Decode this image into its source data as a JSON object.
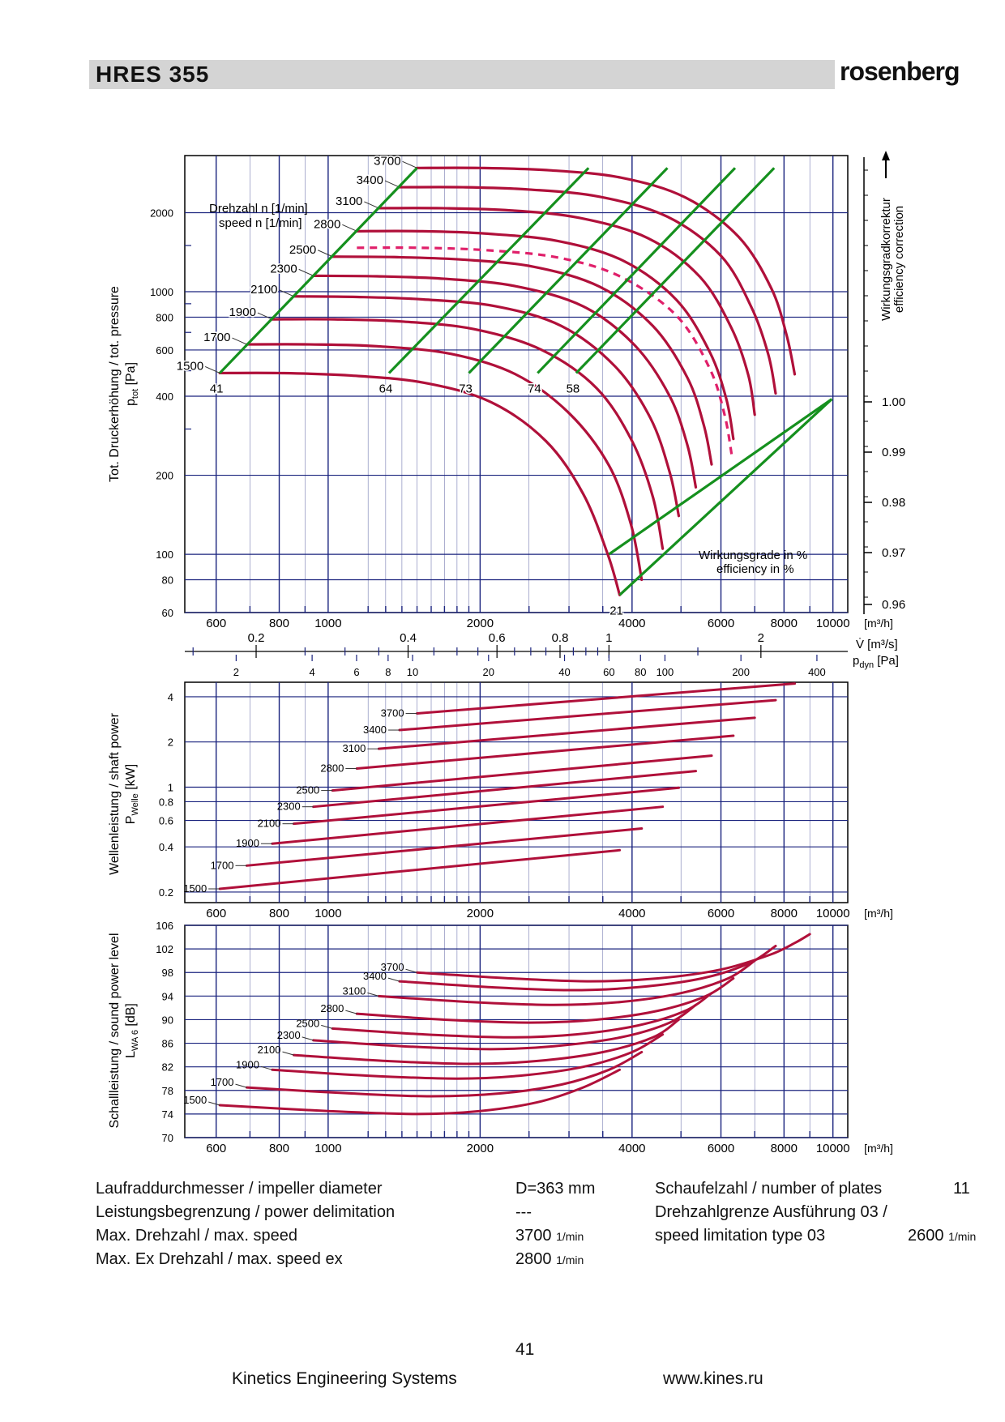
{
  "header": {
    "title": "HRES  355",
    "brand": "rosenberg"
  },
  "colors": {
    "curve": "#b0103a",
    "eff": "#15901e",
    "grid": "#1a237e",
    "header": "#d4d4d4"
  },
  "chart_data": [
    {
      "type": "line",
      "title": "",
      "ylabel": "Tot. Druckerhöhung / tot. pressure",
      "ylabel_sym": "p",
      "ylabel_sub": "tot",
      "ylabel_unit": "[Pa]",
      "xlabel": "[m³/h]",
      "xlabel2": "[m³/s]",
      "xlabel3": "[Pa]",
      "xlabel3_sym": "p",
      "xlabel3_sub": "dyn",
      "xlim": [
        520,
        10700
      ],
      "ylim": [
        60,
        3300
      ],
      "x_log": true,
      "y_log": true,
      "x_ticks": [
        600,
        800,
        1000,
        2000,
        4000,
        6000,
        8000,
        10000
      ],
      "x_tick_labels": [
        "600",
        "800",
        "1000",
        "2000",
        "4000",
        "6000",
        "8000",
        "10000"
      ],
      "y_ticks": [
        60,
        80,
        100,
        200,
        400,
        600,
        800,
        1000,
        2000
      ],
      "x2_ticks": [
        0.2,
        0.4,
        0.6,
        0.8,
        1,
        2
      ],
      "x3_ticks": [
        2,
        4,
        6,
        8,
        10,
        20,
        40,
        60,
        80,
        100,
        200,
        400
      ],
      "speed_label": "Drehzahl n",
      "speed_label_2": "speed n",
      "speed_unit": "[1/min]",
      "eff_label": "Wirkungsgrade in %",
      "eff_label_2": "efficiency in %",
      "corr_label": "Wirkungsgradkorrektur",
      "corr_label_2": "efficiency correction",
      "corr_ticks": [
        "1.00",
        "0.99",
        "0.98",
        "0.97",
        "0.96"
      ],
      "series": [
        {
          "name": "1500",
          "x": [
            610,
            800,
            1100,
            1550,
            2100,
            2700,
            3200,
            3580,
            3780
          ],
          "y": [
            490,
            490,
            480,
            450,
            380,
            270,
            170,
            100,
            70
          ]
        },
        {
          "name": "1700",
          "x": [
            690,
            920,
            1250,
            1750,
            2350,
            3000,
            3600,
            3980,
            4180
          ],
          "y": [
            630,
            630,
            620,
            580,
            485,
            345,
            218,
            130,
            80
          ]
        },
        {
          "name": "1900",
          "x": [
            775,
            1030,
            1400,
            1950,
            2650,
            3400,
            4000,
            4400,
            4600
          ],
          "y": [
            785,
            785,
            770,
            720,
            600,
            430,
            270,
            165,
            105
          ]
        },
        {
          "name": "2100",
          "x": [
            855,
            1140,
            1540,
            2150,
            2900,
            3700,
            4350,
            4750,
            4950
          ],
          "y": [
            960,
            955,
            935,
            880,
            740,
            520,
            330,
            205,
            140
          ]
        },
        {
          "name": "2300",
          "x": [
            935,
            1250,
            1700,
            2350,
            3200,
            4050,
            4750,
            5150,
            5350
          ],
          "y": [
            1150,
            1145,
            1120,
            1050,
            880,
            625,
            400,
            260,
            180
          ]
        },
        {
          "name": "2500",
          "x": [
            1020,
            1350,
            1850,
            2550,
            3450,
            4400,
            5150,
            5550,
            5750
          ],
          "y": [
            1360,
            1355,
            1325,
            1245,
            1045,
            740,
            470,
            310,
            220
          ]
        },
        {
          "name": "2800",
          "x": [
            1140,
            1520,
            2050,
            2850,
            3850,
            4900,
            5700,
            6150,
            6350
          ],
          "y": [
            1700,
            1700,
            1665,
            1560,
            1310,
            930,
            590,
            390,
            275
          ]
        },
        {
          "name": "3100",
          "x": [
            1260,
            1680,
            2300,
            3150,
            4300,
            5450,
            6300,
            6800,
            7000
          ],
          "y": [
            2080,
            2080,
            2040,
            1910,
            1600,
            1140,
            725,
            480,
            340
          ]
        },
        {
          "name": "3400",
          "x": [
            1385,
            1850,
            2500,
            3450,
            4700,
            6000,
            6900,
            7450,
            7700
          ],
          "y": [
            2500,
            2500,
            2450,
            2300,
            1930,
            1370,
            870,
            575,
            410
          ]
        },
        {
          "name": "3700",
          "x": [
            1500,
            2000,
            2750,
            3800,
            5100,
            6500,
            7550,
            8100,
            8400
          ],
          "y": [
            2960,
            2960,
            2900,
            2720,
            2285,
            1620,
            1030,
            680,
            485
          ]
        }
      ],
      "dashed_series": {
        "name": "2800",
        "x": [
          1140,
          1520,
          2050,
          2850,
          3800,
          4900,
          5700,
          6100,
          6300
        ],
        "y": [
          1470,
          1470,
          1440,
          1350,
          1140,
          810,
          510,
          340,
          240
        ]
      },
      "efficiency_lines": [
        {
          "name": "41",
          "x": [
            610,
            1500
          ],
          "y": [
            490,
            2960
          ]
        },
        {
          "name": "64",
          "x": [
            1320,
            3280
          ],
          "y": [
            490,
            2960
          ]
        },
        {
          "name": "73",
          "x": [
            1900,
            4700
          ],
          "y": [
            490,
            2960
          ]
        },
        {
          "name": "74",
          "x": [
            2600,
            6400
          ],
          "y": [
            490,
            2960
          ]
        },
        {
          "name": "58",
          "x": [
            3100,
            7650
          ],
          "y": [
            490,
            2960
          ]
        },
        {
          "name": "21",
          "x": [
            3780,
            9950
          ],
          "y": [
            70,
            390
          ]
        },
        {
          "name": "",
          "x": [
            3600,
            9950
          ],
          "y": [
            100,
            390
          ]
        }
      ]
    },
    {
      "type": "line",
      "ylabel": "Wellenleistung / shaft power",
      "ylabel_sym": "P",
      "ylabel_sub": "Welle",
      "ylabel_unit": "[kW]",
      "xlabel": "[m³/h]",
      "xlim": [
        520,
        10700
      ],
      "ylim": [
        0.17,
        5
      ],
      "x_log": true,
      "y_log": true,
      "x_ticks": [
        600,
        800,
        1000,
        2000,
        4000,
        6000,
        8000,
        10000
      ],
      "x_tick_labels": [
        "600",
        "800",
        "1000",
        "2000",
        "4000",
        "6000",
        "8000",
        "10000"
      ],
      "y_ticks": [
        0.2,
        0.4,
        0.6,
        0.8,
        1,
        2,
        4
      ],
      "series": [
        {
          "name": "1500",
          "x": [
            610,
            3780
          ],
          "y": [
            0.21,
            0.38
          ]
        },
        {
          "name": "1700",
          "x": [
            690,
            4180
          ],
          "y": [
            0.3,
            0.53
          ]
        },
        {
          "name": "1900",
          "x": [
            775,
            4600
          ],
          "y": [
            0.42,
            0.74
          ]
        },
        {
          "name": "2100",
          "x": [
            855,
            4950
          ],
          "y": [
            0.57,
            0.99
          ]
        },
        {
          "name": "2300",
          "x": [
            935,
            5350
          ],
          "y": [
            0.74,
            1.28
          ]
        },
        {
          "name": "2500",
          "x": [
            1020,
            5750
          ],
          "y": [
            0.95,
            1.62
          ]
        },
        {
          "name": "2800",
          "x": [
            1140,
            6350
          ],
          "y": [
            1.33,
            2.2
          ]
        },
        {
          "name": "3100",
          "x": [
            1260,
            7000
          ],
          "y": [
            1.8,
            2.9
          ]
        },
        {
          "name": "3400",
          "x": [
            1385,
            7700
          ],
          "y": [
            2.4,
            3.8
          ]
        },
        {
          "name": "3700",
          "x": [
            1500,
            8400
          ],
          "y": [
            3.1,
            4.9
          ]
        }
      ]
    },
    {
      "type": "line",
      "ylabel": "Schallleistung / sound power level",
      "ylabel_sym": "L",
      "ylabel_sub": "WA 6",
      "ylabel_unit": "[dB]",
      "xlabel": "[m³/h]",
      "xlim": [
        520,
        10700
      ],
      "ylim": [
        70,
        106
      ],
      "x_log": true,
      "y_log": false,
      "x_ticks": [
        600,
        800,
        1000,
        2000,
        4000,
        6000,
        8000,
        10000
      ],
      "x_tick_labels": [
        "600",
        "800",
        "1000",
        "2000",
        "4000",
        "6000",
        "8000",
        "10000"
      ],
      "y_ticks": [
        70,
        74,
        78,
        82,
        86,
        90,
        94,
        98,
        102,
        106
      ],
      "series": [
        {
          "name": "1500",
          "x": [
            610,
            1000,
            1500,
            2000,
            2600,
            3200,
            3780
          ],
          "y": [
            75.5,
            74.5,
            74.0,
            74.5,
            76.0,
            78.5,
            81.5
          ]
        },
        {
          "name": "1700",
          "x": [
            690,
            1100,
            1600,
            2200,
            2900,
            3600,
            4180
          ],
          "y": [
            78.5,
            77.5,
            77.0,
            77.5,
            79.0,
            81.5,
            84.5
          ]
        },
        {
          "name": "1900",
          "x": [
            775,
            1200,
            1800,
            2400,
            3200,
            4000,
            4600
          ],
          "y": [
            81.5,
            80.5,
            80.0,
            80.5,
            82.0,
            84.5,
            87.5
          ]
        },
        {
          "name": "2100",
          "x": [
            855,
            1300,
            1900,
            2600,
            3500,
            4400,
            4950
          ],
          "y": [
            84.0,
            83.0,
            82.5,
            83.0,
            84.5,
            87.0,
            90.0
          ]
        },
        {
          "name": "2300",
          "x": [
            935,
            1400,
            2100,
            2800,
            3800,
            4750,
            5350
          ],
          "y": [
            86.5,
            85.5,
            85.0,
            85.5,
            87.0,
            89.5,
            92.5
          ]
        },
        {
          "name": "2500",
          "x": [
            1020,
            1550,
            2300,
            3100,
            4100,
            5100,
            5750
          ],
          "y": [
            88.5,
            87.5,
            87.0,
            87.5,
            89.0,
            91.5,
            94.5
          ]
        },
        {
          "name": "2800",
          "x": [
            1140,
            1700,
            2500,
            3400,
            4500,
            5600,
            6350
          ],
          "y": [
            91.0,
            90.0,
            89.5,
            90.0,
            91.5,
            94.0,
            97.0
          ]
        },
        {
          "name": "3100",
          "x": [
            1260,
            1900,
            2800,
            3800,
            5000,
            6200,
            7000
          ],
          "y": [
            94.0,
            93.0,
            92.5,
            93.0,
            94.5,
            97.0,
            100.0
          ]
        },
        {
          "name": "3400",
          "x": [
            1385,
            2100,
            3000,
            4100,
            5500,
            6800,
            7700
          ],
          "y": [
            96.5,
            95.5,
            95.0,
            95.5,
            97.0,
            99.5,
            102.5
          ]
        },
        {
          "name": "3700",
          "x": [
            1500,
            2300,
            3300,
            4500,
            6000,
            7500,
            8400,
            9000
          ],
          "y": [
            98.0,
            97.0,
            96.5,
            97.0,
            98.5,
            101.0,
            103.0,
            104.5
          ]
        }
      ]
    }
  ],
  "specs": {
    "impeller_label": "Laufraddurchmesser / impeller diameter",
    "impeller_value": "D=363 mm",
    "power_label": "Leistungsbegrenzung / power delimitation",
    "power_value": "---",
    "speed_label": "Max. Drehzahl / max. speed",
    "speed_value": "3700",
    "exspeed_label": "Max. Ex Drehzahl / max. speed ex",
    "exspeed_value": "2800",
    "speed_unit": "1/min",
    "plates_label": "Schaufelzahl / number of plates",
    "plates_value": "11",
    "limit_label": "Drehzahlgrenze Ausführung 03 /",
    "limit_label_2": "speed limitation type 03",
    "limit_value": "2600"
  },
  "footer": {
    "page_number": "41",
    "company": "Kinetics Engineering Systems",
    "website": "www.kines.ru"
  }
}
